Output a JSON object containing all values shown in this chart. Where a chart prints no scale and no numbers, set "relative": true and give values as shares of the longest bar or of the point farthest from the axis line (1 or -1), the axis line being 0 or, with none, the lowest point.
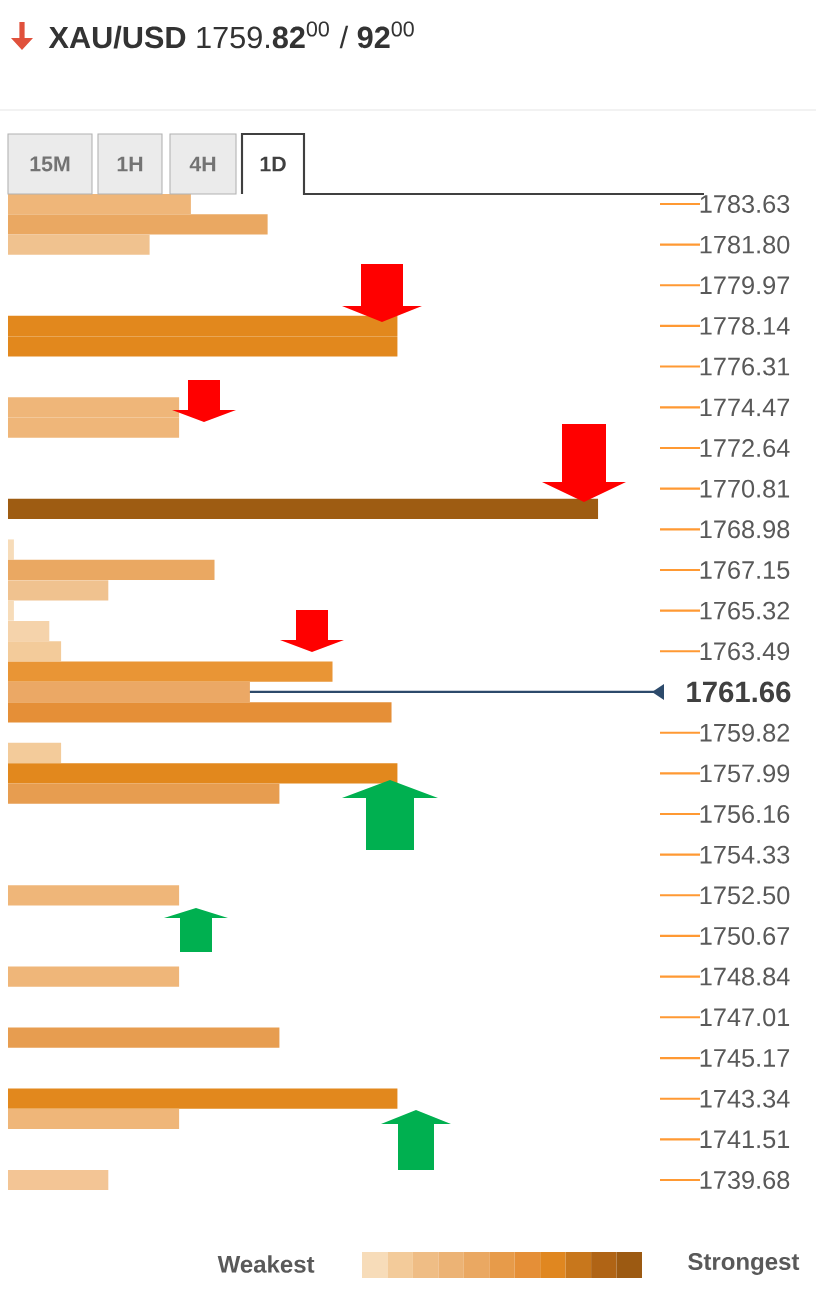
{
  "chart_data": {
    "type": "bar",
    "orientation": "horizontal",
    "relative": true,
    "title": "**XAU/USD** 1759.**82**$^{00}$ / **92**$^{00}$",
    "x": [
      1783.63,
      1782.71,
      1781.8,
      1778.14,
      1777.22,
      1774.47,
      1773.56,
      1769.9,
      1768.07,
      1767.15,
      1766.23,
      1765.32,
      1764.4,
      1763.49,
      1762.57,
      1761.66,
      1760.74,
      1758.91,
      1757.99,
      1757.08,
      1752.5,
      1748.84,
      1746.09,
      1743.34,
      1742.43,
      1739.68
    ],
    "values": [
      0.31,
      0.44,
      0.24,
      0.66,
      0.66,
      0.29,
      0.29,
      1.0,
      0.01,
      0.35,
      0.17,
      0.01,
      0.07,
      0.09,
      0.55,
      0.41,
      0.65,
      0.09,
      0.66,
      0.46,
      0.29,
      0.29,
      0.46,
      0.66,
      0.29,
      0.17
    ],
    "colors": [
      "#efb679",
      "#eaa862",
      "#f0c28f",
      "#e2881d",
      "#e2881d",
      "#efb679",
      "#efb679",
      "#9e5c12",
      "#f7dcb9",
      "#eaa862",
      "#f0c28f",
      "#f7dcb9",
      "#f5d3ab",
      "#f3cb9a",
      "#e99535",
      "#eba865",
      "#e58f37",
      "#f3cb9a",
      "#e2881d",
      "#e79d50",
      "#efb679",
      "#efb679",
      "#e79d50",
      "#e2881d",
      "#efb679",
      "#f3c595"
    ],
    "ylim": [
      1739.05,
      1784.08
    ],
    "yticks": [
      1783.63,
      {
        "value": 1781.8,
        "label": "1781.80"
      },
      1779.97,
      1778.14,
      1776.31,
      1774.47,
      1772.64,
      1770.81,
      1768.98,
      1767.15,
      1765.32,
      1763.49,
      1759.82,
      1757.99,
      1756.16,
      1754.33,
      {
        "value": 1752.5,
        "label": "1752.50"
      },
      1750.67,
      1748.84,
      1747.01,
      1745.17,
      1743.34,
      1741.51,
      1739.68
    ],
    "ref_lines": [
      {
        "axis": "y",
        "value": 1761.66,
        "label": "1761.66",
        "color": "#2c4a6b"
      }
    ],
    "annotations": [
      "15M",
      "1H",
      "4H",
      "1D",
      "Weakest",
      "Strongest"
    ]
  }
}
